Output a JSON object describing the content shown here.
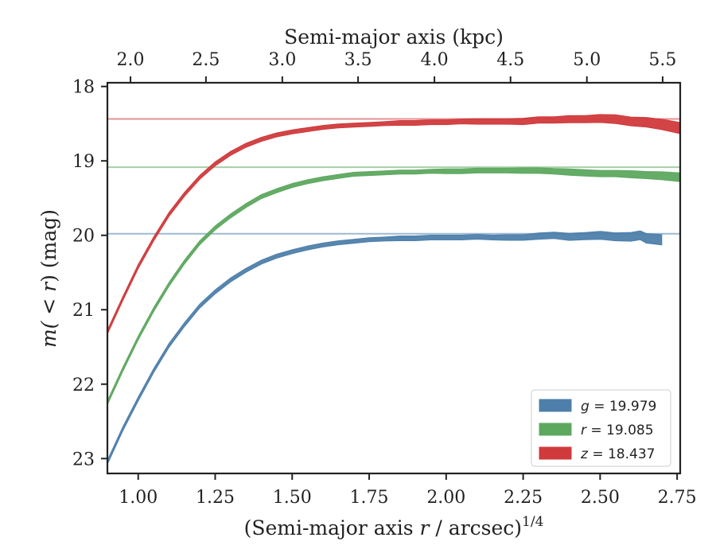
{
  "chart_data": {
    "type": "line",
    "xlabel_prefix": "(Semi-major axis ",
    "xlabel_var": "r",
    "xlabel_suffix": " / arcsec)",
    "xlabel_exp": "1/4",
    "ylabel_prefix": "m(",
    "ylabel_mid": " < r",
    "ylabel_suffix": ") (mag)",
    "x2label": "Semi-major axis (kpc)",
    "xlim": [
      0.9,
      2.76
    ],
    "ylim": [
      23.2,
      17.95
    ],
    "y_inverted": true,
    "x_ticks": [
      1.0,
      1.25,
      1.5,
      1.75,
      2.0,
      2.25,
      2.5,
      2.75
    ],
    "x_tick_labels": [
      "1.00",
      "1.25",
      "1.50",
      "1.75",
      "2.00",
      "2.25",
      "2.50",
      "2.75"
    ],
    "y_ticks": [
      18,
      19,
      20,
      21,
      22,
      23
    ],
    "y_tick_labels": [
      "18",
      "19",
      "20",
      "21",
      "22",
      "23"
    ],
    "x2_ticks": [
      2.0,
      2.5,
      3.0,
      3.5,
      4.0,
      4.5,
      5.0,
      5.5
    ],
    "x2_tick_labels": [
      "2.0",
      "2.5",
      "3.0",
      "3.5",
      "4.0",
      "4.5",
      "5.0",
      "5.5"
    ],
    "x2_tick_positions": [
      0.975,
      1.22,
      1.468,
      1.714,
      1.962,
      2.209,
      2.457,
      2.703
    ],
    "legend_position": "lower-right",
    "series": [
      {
        "band": "g",
        "value": "19.979",
        "color": "#4e7fab",
        "asymptote": 19.979,
        "x": [
          0.9,
          0.95,
          1.0,
          1.05,
          1.1,
          1.15,
          1.2,
          1.25,
          1.3,
          1.35,
          1.4,
          1.45,
          1.5,
          1.55,
          1.6,
          1.65,
          1.7,
          1.75,
          1.8,
          1.85,
          1.9,
          1.95,
          2.0,
          2.05,
          2.1,
          2.15,
          2.2,
          2.25,
          2.3,
          2.35,
          2.4,
          2.45,
          2.5,
          2.55,
          2.6,
          2.63,
          2.65,
          2.7
        ],
        "y": [
          23.05,
          22.6,
          22.2,
          21.82,
          21.48,
          21.2,
          20.95,
          20.76,
          20.6,
          20.47,
          20.36,
          20.28,
          20.22,
          20.17,
          20.13,
          20.1,
          20.08,
          20.06,
          20.05,
          20.04,
          20.04,
          20.03,
          20.03,
          20.03,
          20.02,
          20.03,
          20.03,
          20.03,
          20.01,
          20.0,
          20.02,
          20.01,
          20.0,
          20.02,
          20.02,
          20.0,
          20.04,
          20.06
        ],
        "w": [
          5,
          5,
          5,
          5,
          5,
          5,
          5,
          5,
          5,
          5,
          5,
          5,
          5,
          5,
          5,
          5,
          5,
          5,
          5,
          6,
          6,
          6,
          6,
          6,
          6,
          6,
          7,
          7,
          8,
          8,
          9,
          9,
          10,
          10,
          11,
          11,
          12,
          13
        ]
      },
      {
        "band": "r",
        "value": "19.085",
        "color": "#5da85f",
        "asymptote": 19.085,
        "x": [
          0.9,
          0.95,
          1.0,
          1.05,
          1.1,
          1.15,
          1.2,
          1.25,
          1.3,
          1.35,
          1.4,
          1.45,
          1.5,
          1.55,
          1.6,
          1.65,
          1.7,
          1.75,
          1.8,
          1.85,
          1.9,
          1.95,
          2.0,
          2.05,
          2.1,
          2.15,
          2.2,
          2.25,
          2.3,
          2.35,
          2.4,
          2.45,
          2.5,
          2.55,
          2.6,
          2.65,
          2.7,
          2.76
        ],
        "y": [
          22.25,
          21.8,
          21.38,
          21.0,
          20.66,
          20.36,
          20.1,
          19.9,
          19.74,
          19.6,
          19.48,
          19.4,
          19.33,
          19.28,
          19.24,
          19.21,
          19.18,
          19.17,
          19.16,
          19.15,
          19.15,
          19.14,
          19.14,
          19.14,
          19.13,
          19.13,
          19.13,
          19.13,
          19.13,
          19.14,
          19.15,
          19.16,
          19.17,
          19.17,
          19.18,
          19.19,
          19.2,
          19.22
        ],
        "w": [
          5,
          5,
          5,
          5,
          5,
          5,
          5,
          5,
          5,
          5,
          5,
          5,
          5,
          5,
          5,
          5,
          5,
          5,
          5,
          5,
          5,
          5,
          6,
          6,
          6,
          6,
          6,
          7,
          7,
          7,
          8,
          8,
          8,
          8,
          9,
          9,
          10,
          11
        ]
      },
      {
        "band": "z",
        "value": "18.437",
        "color": "#d03a3c",
        "asymptote": 18.437,
        "x": [
          0.9,
          0.95,
          1.0,
          1.05,
          1.1,
          1.15,
          1.2,
          1.25,
          1.3,
          1.35,
          1.4,
          1.45,
          1.5,
          1.55,
          1.6,
          1.65,
          1.7,
          1.75,
          1.8,
          1.85,
          1.9,
          1.95,
          2.0,
          2.05,
          2.1,
          2.15,
          2.2,
          2.25,
          2.3,
          2.35,
          2.4,
          2.45,
          2.5,
          2.55,
          2.6,
          2.65,
          2.7,
          2.76
        ],
        "y": [
          21.3,
          20.85,
          20.42,
          20.05,
          19.72,
          19.45,
          19.22,
          19.04,
          18.9,
          18.79,
          18.71,
          18.65,
          18.61,
          18.58,
          18.55,
          18.53,
          18.52,
          18.51,
          18.5,
          18.49,
          18.49,
          18.48,
          18.48,
          18.47,
          18.47,
          18.47,
          18.47,
          18.47,
          18.45,
          18.45,
          18.44,
          18.44,
          18.43,
          18.44,
          18.47,
          18.48,
          18.51,
          18.56
        ],
        "w": [
          5,
          5,
          5,
          5,
          5,
          5,
          5,
          5,
          5,
          5,
          5,
          5,
          5,
          5,
          5,
          5,
          5,
          5,
          5,
          6,
          6,
          6,
          6,
          6,
          7,
          7,
          7,
          8,
          8,
          8,
          9,
          9,
          10,
          11,
          11,
          12,
          13,
          14
        ]
      }
    ]
  }
}
